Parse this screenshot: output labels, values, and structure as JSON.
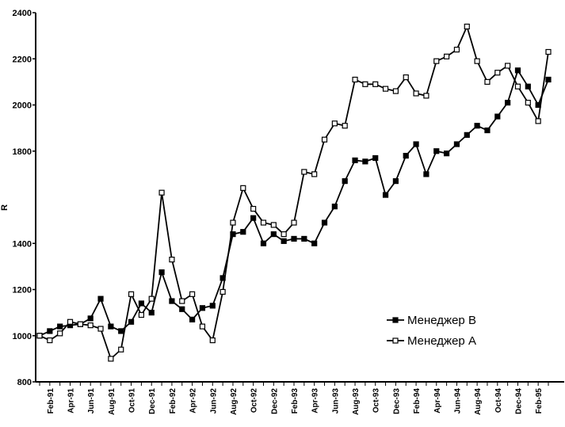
{
  "chart_data": {
    "type": "line",
    "title": "",
    "xlabel": "",
    "ylabel": "R",
    "ylim": [
      800,
      2400
    ],
    "yticks": [
      800,
      1000,
      1200,
      1400,
      1800,
      2000,
      2200,
      2400
    ],
    "x": [
      "Jan-91",
      "Feb-91",
      "Mar-91",
      "Apr-91",
      "May-91",
      "Jun-91",
      "Jul-91",
      "Aug-91",
      "Sep-91",
      "Oct-91",
      "Nov-91",
      "Dec-91",
      "Jan-92",
      "Feb-92",
      "Mar-92",
      "Apr-92",
      "May-92",
      "Jun-92",
      "Jul-92",
      "Aug-92",
      "Sep-92",
      "Oct-92",
      "Nov-92",
      "Dec-92",
      "Jan-93",
      "Feb-93",
      "Mar-93",
      "Apr-93",
      "May-93",
      "Jun-93",
      "Jul-93",
      "Aug-93",
      "Sep-93",
      "Oct-93",
      "Nov-93",
      "Dec-93",
      "Jan-94",
      "Feb-94",
      "Mar-94",
      "Apr-94",
      "May-94",
      "Jun-94",
      "Jul-94",
      "Aug-94",
      "Sep-94",
      "Oct-94",
      "Nov-94",
      "Dec-94",
      "Jan-95",
      "Feb-95",
      "Mar-95"
    ],
    "xticks": [
      "Feb-91",
      "Apr-91",
      "Jun-91",
      "Aug-91",
      "Oct-91",
      "Dec-91",
      "Feb-92",
      "Apr-92",
      "Jun-92",
      "Aug-92",
      "Oct-92",
      "Dec-92",
      "Feb-93",
      "Apr-93",
      "Jun-93",
      "Aug-93",
      "Oct-93",
      "Dec-93",
      "Feb-94",
      "Apr-94",
      "Jun-94",
      "Aug-94",
      "Oct-94",
      "Dec-94",
      "Feb-95"
    ],
    "series": [
      {
        "name": "Менеджер В",
        "marker": "filled-square",
        "values": [
          1000,
          1020,
          1040,
          1045,
          1050,
          1075,
          1160,
          1040,
          1020,
          1060,
          1140,
          1100,
          1275,
          1150,
          1115,
          1070,
          1120,
          1130,
          1250,
          1440,
          1450,
          1510,
          1400,
          1440,
          1410,
          1420,
          1420,
          1400,
          1490,
          1560,
          1670,
          1760,
          1755,
          1770,
          1610,
          1670,
          1780,
          1830,
          1700,
          1800,
          1790,
          1830,
          1870,
          1910,
          1890,
          1950,
          2010,
          2150,
          2080,
          2000,
          2110
        ]
      },
      {
        "name": "Менеджер А",
        "marker": "open-square",
        "values": [
          1000,
          980,
          1010,
          1060,
          1050,
          1045,
          1030,
          900,
          940,
          1180,
          1090,
          1160,
          1620,
          1330,
          1150,
          1180,
          1040,
          980,
          1190,
          1490,
          1640,
          1550,
          1490,
          1480,
          1440,
          1490,
          1710,
          1700,
          1850,
          1920,
          1910,
          2110,
          2090,
          2090,
          2070,
          2060,
          2120,
          2050,
          2040,
          2190,
          2210,
          2240,
          2340,
          2190,
          2100,
          2140,
          2170,
          2080,
          2010,
          1930,
          2230
        ]
      }
    ],
    "legend": "bottom-right",
    "grid": false
  }
}
